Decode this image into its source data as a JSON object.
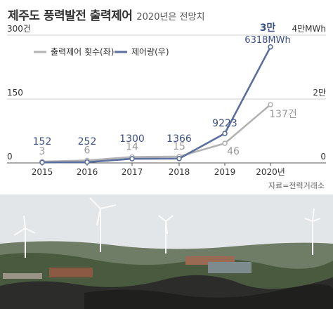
{
  "header": {
    "title": "제주도 풍력발전 출력제어",
    "subtitle": "2020년은 전망치"
  },
  "source": "자료=전력거래소",
  "chart_data": {
    "type": "line",
    "x": [
      "2015",
      "2016",
      "2017",
      "2018",
      "2019",
      "2020년"
    ],
    "left_axis": {
      "ylim": [
        0,
        300
      ],
      "ticks": [
        {
          "value": 0,
          "label": "0"
        },
        {
          "value": 150,
          "label": "150"
        },
        {
          "value": 300,
          "label": "300건"
        }
      ]
    },
    "right_axis": {
      "ylim": [
        0,
        40000
      ],
      "ticks": [
        {
          "value": 0,
          "label": "0"
        },
        {
          "value": 20000,
          "label": "2만"
        },
        {
          "value": 40000,
          "label": "4만MWh"
        }
      ]
    },
    "series": [
      {
        "name": "출력제어 횟수(좌)",
        "axis": "left",
        "color": "#b3b3b3",
        "values": [
          3,
          6,
          14,
          15,
          46,
          137
        ],
        "labels": [
          "3",
          "6",
          "14",
          "15",
          "46",
          "137건"
        ]
      },
      {
        "name": "제어량(우)",
        "axis": "right",
        "color": "#5a6f9e",
        "values": [
          152,
          252,
          1300,
          1366,
          9223,
          36318
        ],
        "labels": [
          "152",
          "252",
          "1300",
          "1366",
          "9223",
          "3만 6318MWh"
        ]
      }
    ],
    "grid": true,
    "legend_position": "top-left"
  },
  "photo": {
    "sky": "#e3e6e8",
    "ground": "#4a5a3e",
    "rocks": "#2c2c2a",
    "turbine": "#fafafa"
  }
}
